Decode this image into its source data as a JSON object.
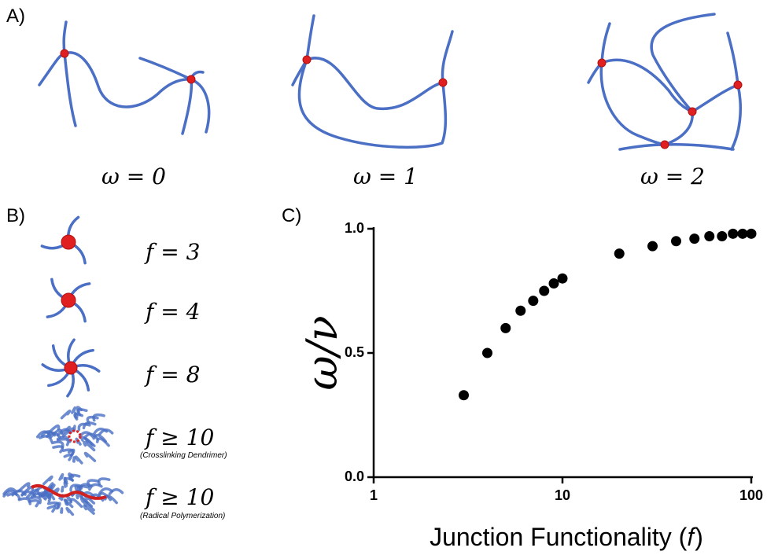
{
  "panel_a": {
    "label": "A)",
    "captions": [
      "ω = 0",
      "ω = 1",
      "ω = 2"
    ]
  },
  "panel_b": {
    "label": "B)",
    "items": [
      {
        "formula": "f = 3"
      },
      {
        "formula": "f = 4"
      },
      {
        "formula": "f = 8"
      },
      {
        "formula": "f ≥ 10",
        "note": "(Crosslinking Dendrimer)"
      },
      {
        "formula": "f ≥ 10",
        "note": "(Radical Polymerization)"
      }
    ]
  },
  "panel_c": {
    "label": "C)"
  },
  "chart_data": {
    "type": "scatter",
    "x_label": "Junction Functionality (𝑓)",
    "y_label": "ω/ν",
    "x": [
      3,
      4,
      5,
      6,
      7,
      8,
      9,
      10,
      20,
      30,
      40,
      50,
      60,
      70,
      80,
      90,
      100
    ],
    "values": [
      0.33,
      0.5,
      0.6,
      0.67,
      0.71,
      0.75,
      0.78,
      0.8,
      0.9,
      0.93,
      0.95,
      0.96,
      0.97,
      0.97,
      0.98,
      0.98,
      0.98
    ],
    "color": "#000000",
    "xscale": "log",
    "xlim": [
      1,
      100
    ],
    "xticks": [
      1,
      10,
      100
    ],
    "ylim": [
      0,
      1
    ],
    "yticks": [
      {
        "value": 0,
        "label": "0.0"
      },
      {
        "value": 0.5,
        "label": "0.5"
      },
      {
        "value": 1,
        "label": "1.0"
      }
    ]
  }
}
